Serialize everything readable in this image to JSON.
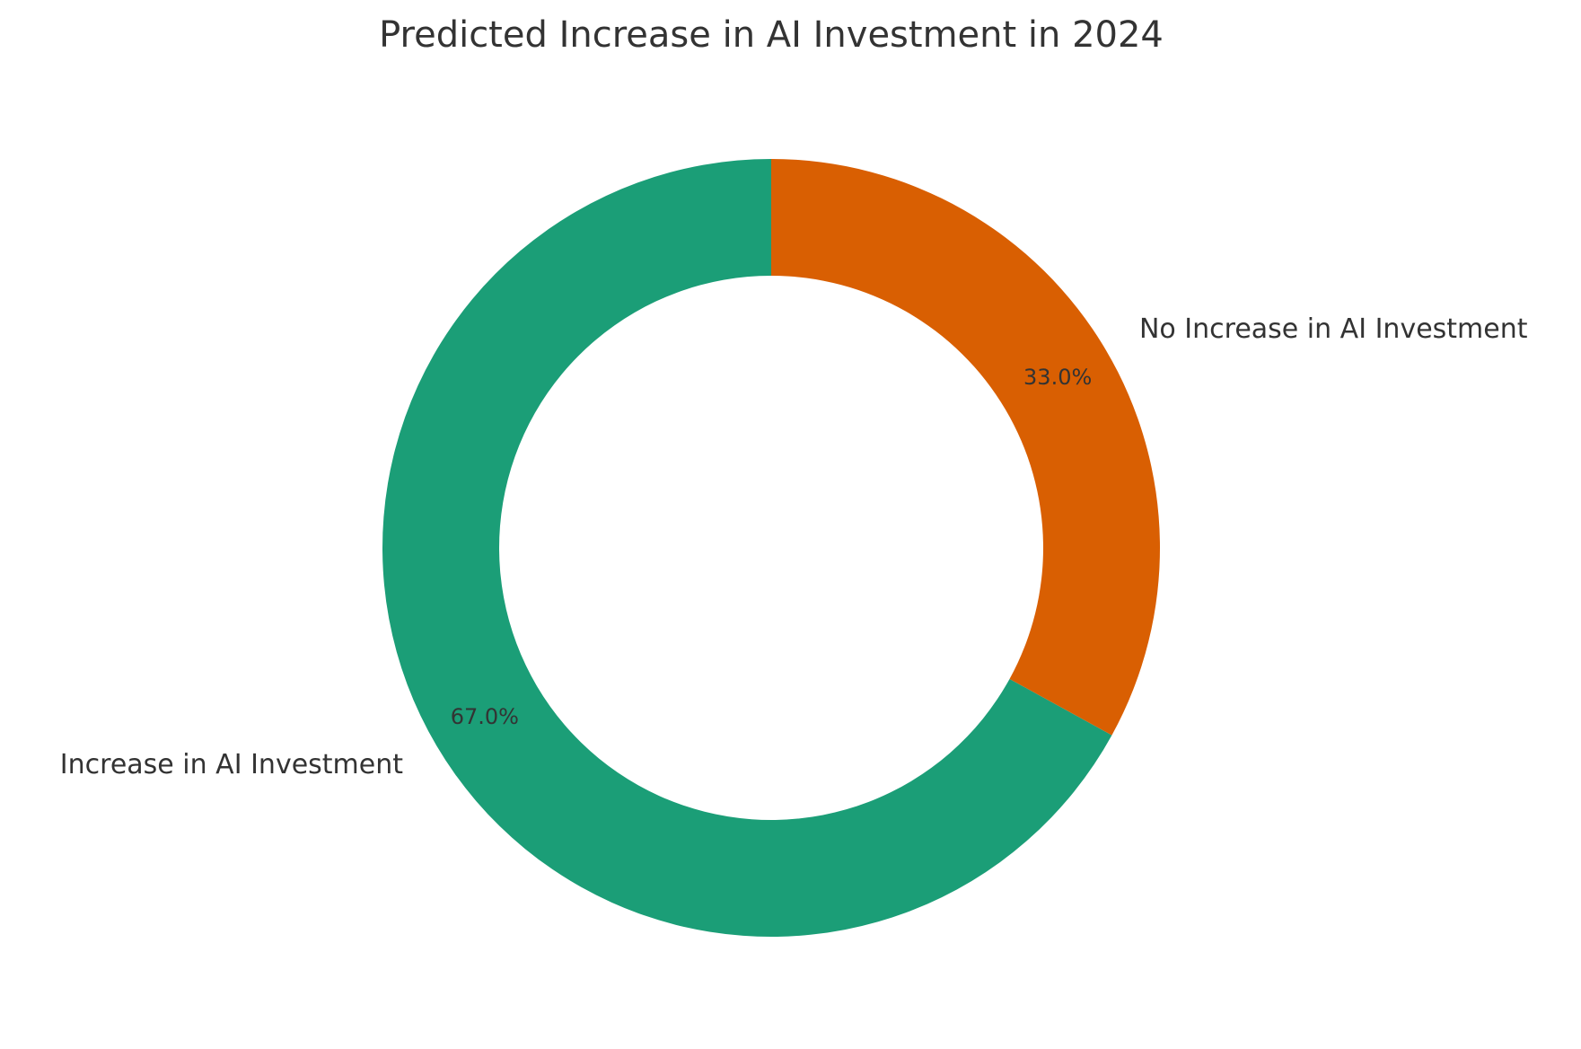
{
  "chart_data": {
    "type": "pie",
    "title": "Predicted Increase in AI Investment in 2024",
    "donut": true,
    "start_angle_deg": 90,
    "direction": "counterclockwise",
    "slices": [
      {
        "label": "Increase in AI Investment",
        "value": 67.0,
        "pct_label": "67.0%",
        "color": "#1b9e77"
      },
      {
        "label": "No Increase in AI Investment",
        "value": 33.0,
        "pct_label": "33.0%",
        "color": "#d95f02"
      }
    ]
  }
}
